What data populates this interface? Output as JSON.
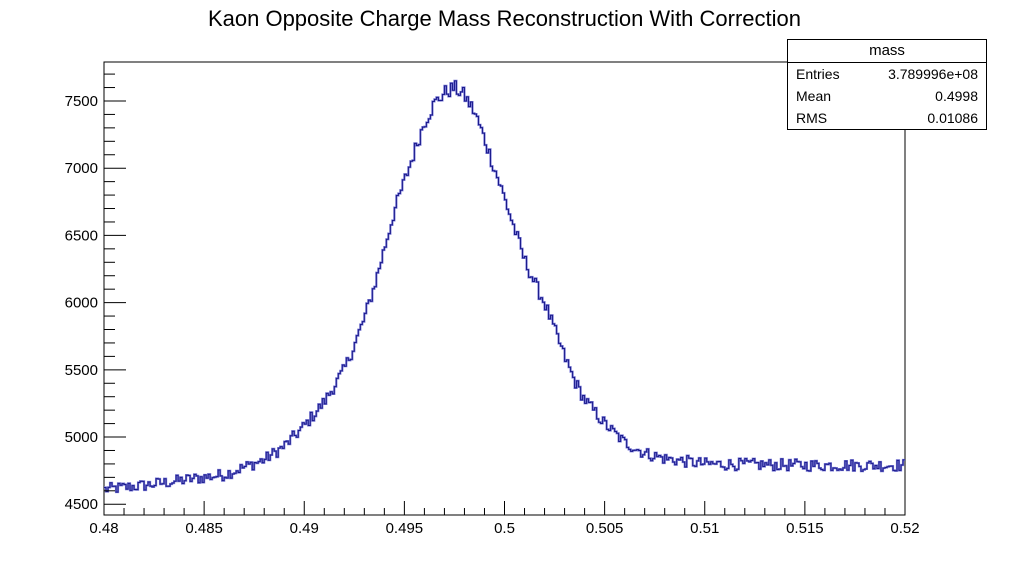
{
  "chart_data": {
    "type": "histogram-step",
    "title": "Kaon Opposite Charge Mass Reconstruction With Correction",
    "xlabel": "",
    "ylabel": "",
    "xlim": [
      0.48,
      0.52
    ],
    "ylim": [
      4420,
      7790
    ],
    "x_ticks": [
      {
        "value": 0.48,
        "label": "0.48"
      },
      {
        "value": 0.485,
        "label": "0.485"
      },
      {
        "value": 0.49,
        "label": "0.49"
      },
      {
        "value": 0.495,
        "label": "0.495"
      },
      {
        "value": 0.5,
        "label": "0.5"
      },
      {
        "value": 0.505,
        "label": "0.505"
      },
      {
        "value": 0.51,
        "label": "0.51"
      },
      {
        "value": 0.515,
        "label": "0.515"
      },
      {
        "value": 0.52,
        "label": "0.52"
      }
    ],
    "y_ticks": [
      {
        "value": 4500,
        "label": "4500"
      },
      {
        "value": 5000,
        "label": "5000"
      },
      {
        "value": 5500,
        "label": "5500"
      },
      {
        "value": 6000,
        "label": "6000"
      },
      {
        "value": 6500,
        "label": "6500"
      },
      {
        "value": 7000,
        "label": "7000"
      },
      {
        "value": 7500,
        "label": "7500"
      }
    ],
    "grid": false,
    "line_color": "#1a1a8c",
    "fill_color": "#7b7bd6",
    "bins": 400,
    "anchors": [
      [
        0.48,
        4610
      ],
      [
        0.482,
        4640
      ],
      [
        0.484,
        4680
      ],
      [
        0.486,
        4720
      ],
      [
        0.488,
        4830
      ],
      [
        0.489,
        4930
      ],
      [
        0.49,
        5080
      ],
      [
        0.491,
        5260
      ],
      [
        0.492,
        5500
      ],
      [
        0.4925,
        5680
      ],
      [
        0.493,
        5880
      ],
      [
        0.4935,
        6120
      ],
      [
        0.494,
        6400
      ],
      [
        0.4945,
        6680
      ],
      [
        0.495,
        6900
      ],
      [
        0.4955,
        7120
      ],
      [
        0.496,
        7340
      ],
      [
        0.4965,
        7480
      ],
      [
        0.497,
        7560
      ],
      [
        0.4975,
        7600
      ],
      [
        0.498,
        7540
      ],
      [
        0.4985,
        7420
      ],
      [
        0.499,
        7220
      ],
      [
        0.4995,
        7000
      ],
      [
        0.5,
        6780
      ],
      [
        0.5005,
        6550
      ],
      [
        0.501,
        6320
      ],
      [
        0.5015,
        6150
      ],
      [
        0.502,
        6000
      ],
      [
        0.5025,
        5800
      ],
      [
        0.503,
        5600
      ],
      [
        0.5035,
        5420
      ],
      [
        0.504,
        5280
      ],
      [
        0.505,
        5100
      ],
      [
        0.506,
        4960
      ],
      [
        0.507,
        4880
      ],
      [
        0.508,
        4840
      ],
      [
        0.51,
        4800
      ],
      [
        0.515,
        4790
      ],
      [
        0.52,
        4790
      ]
    ],
    "noise_amplitude": 45
  },
  "stats": {
    "name": "mass",
    "entries_label": "Entries",
    "entries_value": "3.789996e+08",
    "mean_label": "Mean",
    "mean_value": "0.4998",
    "rms_label": "RMS",
    "rms_value": "0.01086"
  }
}
